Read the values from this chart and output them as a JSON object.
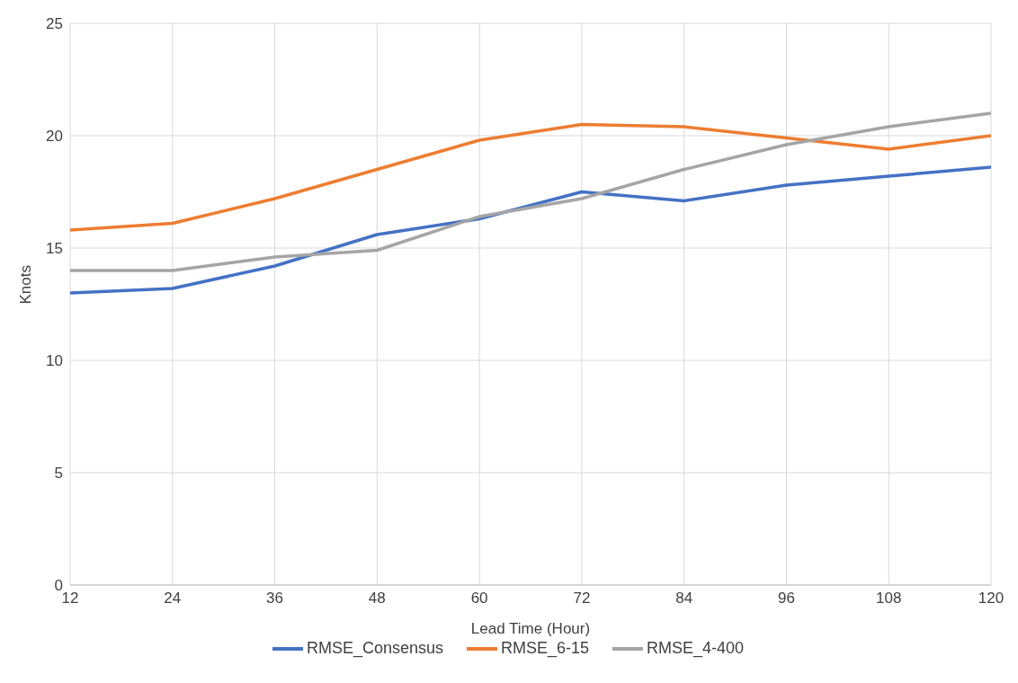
{
  "chart_data": {
    "type": "line",
    "xlabel": "Lead Time (Hour)",
    "ylabel": "Knots",
    "x": [
      12,
      24,
      36,
      48,
      60,
      72,
      84,
      96,
      108,
      120
    ],
    "series": [
      {
        "name": "RMSE_Consensus",
        "color": "#4472c4",
        "values": [
          13.0,
          13.2,
          14.2,
          15.6,
          16.3,
          17.5,
          17.1,
          17.8,
          18.2,
          18.6
        ]
      },
      {
        "name": "RMSE_6-15",
        "color": "#ed7d31",
        "values": [
          15.8,
          16.1,
          17.2,
          18.5,
          19.8,
          20.5,
          20.4,
          19.9,
          19.4,
          20.0
        ]
      },
      {
        "name": "RMSE_4-400",
        "color": "#a5a5a5",
        "values": [
          14.0,
          14.0,
          14.6,
          14.9,
          16.4,
          17.2,
          18.5,
          19.6,
          20.4,
          21.0
        ]
      }
    ],
    "xlim": [
      12,
      120
    ],
    "xticks": [
      12,
      24,
      36,
      48,
      60,
      72,
      84,
      96,
      108,
      120
    ],
    "ylim": [
      0,
      25
    ],
    "yticks": [
      0,
      5,
      10,
      15,
      20,
      25
    ],
    "grid": true,
    "legend": "bottom",
    "marker": "none",
    "line_style": "solid"
  }
}
